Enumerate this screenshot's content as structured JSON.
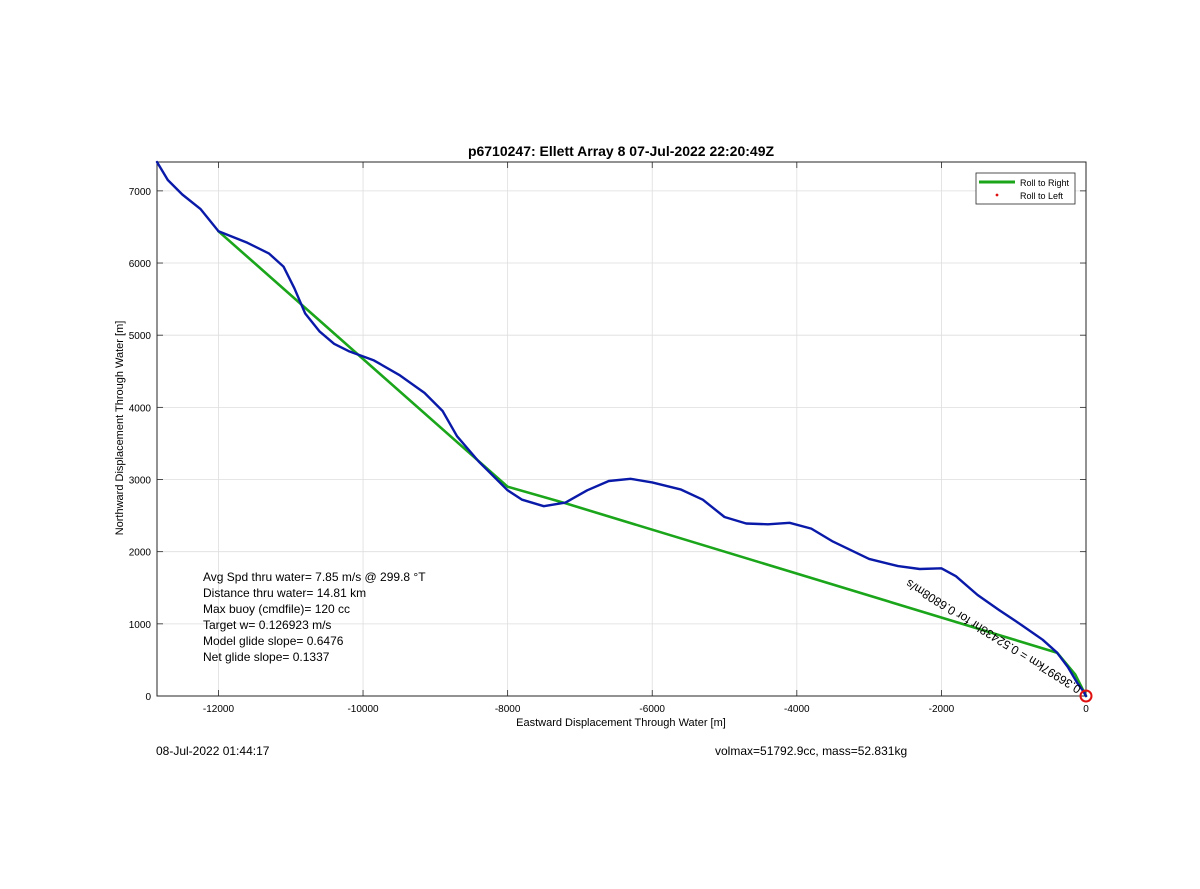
{
  "chart_data": {
    "type": "line",
    "title": "p6710247: Ellett Array 8 07-Jul-2022 22:20:49Z",
    "xlabel": "Eastward Displacement Through Water [m]",
    "ylabel": "Northward Displacement Through Water [m]",
    "xlim": [
      -12850,
      0
    ],
    "ylim": [
      0,
      7400
    ],
    "xticks": [
      -12000,
      -10000,
      -8000,
      -6000,
      -4000,
      -2000,
      0
    ],
    "yticks": [
      0,
      1000,
      2000,
      3000,
      4000,
      5000,
      6000,
      7000
    ],
    "grid": true,
    "legend_position": "top-right",
    "legend": [
      {
        "label": "Roll to Right",
        "color": "#1aa51a",
        "marker": "line"
      },
      {
        "label": "Roll to Left",
        "color": "#e01010",
        "marker": "dot"
      }
    ],
    "series": [
      {
        "name": "Roll to Right",
        "color": "#1aa51a",
        "points": [
          [
            -12000,
            6440
          ],
          [
            -8000,
            2900
          ],
          [
            -7200,
            2670
          ],
          [
            -400,
            600
          ],
          [
            -150,
            300
          ],
          [
            -20,
            40
          ],
          [
            0,
            0
          ]
        ]
      },
      {
        "color": "#0a1aa8",
        "points": [
          [
            -12850,
            7400
          ],
          [
            -12700,
            7150
          ],
          [
            -12500,
            6950
          ],
          [
            -12250,
            6750
          ],
          [
            -12000,
            6440
          ],
          [
            -11600,
            6280
          ],
          [
            -11300,
            6130
          ],
          [
            -11100,
            5950
          ],
          [
            -10950,
            5650
          ],
          [
            -10800,
            5300
          ],
          [
            -10600,
            5050
          ],
          [
            -10400,
            4880
          ],
          [
            -10200,
            4780
          ],
          [
            -9850,
            4650
          ],
          [
            -9500,
            4450
          ],
          [
            -9150,
            4200
          ],
          [
            -8900,
            3950
          ],
          [
            -8700,
            3600
          ],
          [
            -8400,
            3250
          ],
          [
            -8000,
            2850
          ],
          [
            -7800,
            2720
          ],
          [
            -7500,
            2630
          ],
          [
            -7200,
            2680
          ],
          [
            -6900,
            2850
          ],
          [
            -6600,
            2980
          ],
          [
            -6300,
            3010
          ],
          [
            -6000,
            2960
          ],
          [
            -5600,
            2860
          ],
          [
            -5300,
            2720
          ],
          [
            -5000,
            2480
          ],
          [
            -4700,
            2390
          ],
          [
            -4400,
            2380
          ],
          [
            -4100,
            2400
          ],
          [
            -3800,
            2320
          ],
          [
            -3500,
            2140
          ],
          [
            -3000,
            1900
          ],
          [
            -2600,
            1800
          ],
          [
            -2300,
            1760
          ],
          [
            -2000,
            1770
          ],
          [
            -1800,
            1660
          ],
          [
            -1500,
            1400
          ],
          [
            -1200,
            1190
          ],
          [
            -900,
            990
          ],
          [
            -600,
            780
          ],
          [
            -400,
            600
          ],
          [
            -250,
            400
          ],
          [
            -120,
            180
          ],
          [
            -40,
            70
          ],
          [
            0,
            0
          ]
        ]
      }
    ],
    "annotations": [
      "Avg Spd thru water=  7.85 m/s @ 299.8 °T",
      "Distance thru water= 14.81 km",
      "Max buoy (cmdfile)= 120 cc",
      "Target w= 0.126923 m/s",
      "Model glide slope= 0.6476",
      "Net glide slope= 0.1337"
    ],
    "path_label": "0.36997km = 0.52438hr for 0.6808m/s",
    "end_marker": {
      "x": 0,
      "y": 0,
      "color": "#e01010"
    },
    "colors": {
      "axis": "#262626",
      "grid": "#dedede"
    }
  },
  "footer": {
    "left": "08-Jul-2022 01:44:17",
    "right": "volmax=51792.9cc, mass=52.831kg"
  }
}
